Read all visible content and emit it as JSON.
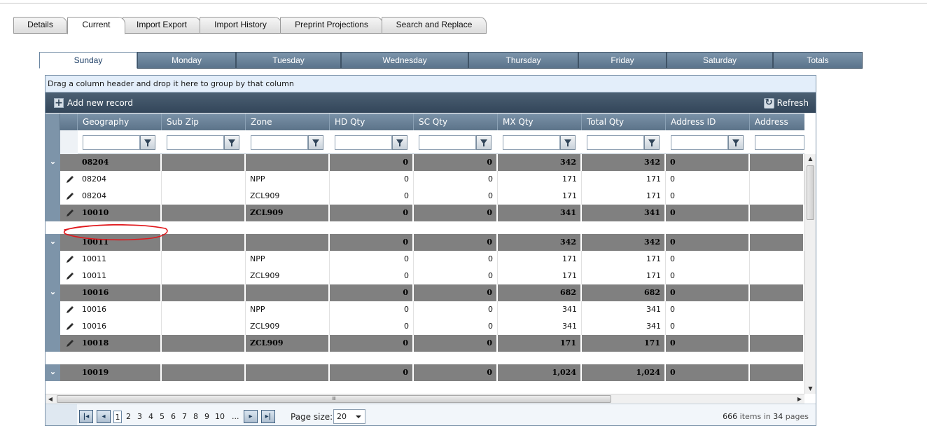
{
  "top_tabs": [
    "Details",
    "Current",
    "Import Export",
    "Import History",
    "Preprint Projections",
    "Search and Replace"
  ],
  "day_tabs": [
    "Sunday",
    "Monday",
    "Tuesday",
    "Wednesday",
    "Thursday",
    "Friday",
    "Saturday",
    "Totals"
  ],
  "grid": {
    "group_panel_text": "Drag a column header and drop it here to group by that column",
    "add_label": "Add new record",
    "refresh_label": "Refresh",
    "columns": [
      "Geography",
      "Sub Zip",
      "Zone",
      "HD Qty",
      "SC Qty",
      "MX Qty",
      "Total Qty",
      "Address ID",
      "Address"
    ],
    "rows": [
      {
        "type": "group",
        "expand": "⌄",
        "geo": "08204",
        "subzip": "",
        "zone": "",
        "hd": "0",
        "sc": "0",
        "mx": "342",
        "total": "342",
        "addr": "0"
      },
      {
        "type": "data",
        "geo": "08204",
        "subzip": "",
        "zone": "NPP",
        "hd": "0",
        "sc": "0",
        "mx": "171",
        "total": "171",
        "addr": "0"
      },
      {
        "type": "data",
        "geo": "08204",
        "subzip": "",
        "zone": "ZCL909",
        "hd": "0",
        "sc": "0",
        "mx": "171",
        "total": "171",
        "addr": "0"
      },
      {
        "type": "group-edit",
        "geo": "10010",
        "subzip": "",
        "zone": "ZCL909",
        "hd": "0",
        "sc": "0",
        "mx": "341",
        "total": "341",
        "addr": "0"
      },
      {
        "type": "group",
        "expand": "⌄",
        "geo": "10011",
        "subzip": "",
        "zone": "",
        "hd": "0",
        "sc": "0",
        "mx": "342",
        "total": "342",
        "addr": "0"
      },
      {
        "type": "data",
        "geo": "10011",
        "subzip": "",
        "zone": "NPP",
        "hd": "0",
        "sc": "0",
        "mx": "171",
        "total": "171",
        "addr": "0"
      },
      {
        "type": "data",
        "geo": "10011",
        "subzip": "",
        "zone": "ZCL909",
        "hd": "0",
        "sc": "0",
        "mx": "171",
        "total": "171",
        "addr": "0"
      },
      {
        "type": "group",
        "expand": "⌄",
        "geo": "10016",
        "subzip": "",
        "zone": "",
        "hd": "0",
        "sc": "0",
        "mx": "682",
        "total": "682",
        "addr": "0"
      },
      {
        "type": "data",
        "geo": "10016",
        "subzip": "",
        "zone": "NPP",
        "hd": "0",
        "sc": "0",
        "mx": "341",
        "total": "341",
        "addr": "0"
      },
      {
        "type": "data",
        "geo": "10016",
        "subzip": "",
        "zone": "ZCL909",
        "hd": "0",
        "sc": "0",
        "mx": "341",
        "total": "341",
        "addr": "0"
      },
      {
        "type": "group-edit",
        "geo": "10018",
        "subzip": "",
        "zone": "ZCL909",
        "hd": "0",
        "sc": "0",
        "mx": "171",
        "total": "171",
        "addr": "0"
      },
      {
        "type": "group",
        "expand": "⌄",
        "geo": "10019",
        "subzip": "",
        "zone": "",
        "hd": "0",
        "sc": "0",
        "mx": "1,024",
        "total": "1,024",
        "addr": "0"
      }
    ]
  },
  "pager": {
    "pages": [
      "1",
      "2",
      "3",
      "4",
      "5",
      "6",
      "7",
      "8",
      "9",
      "10",
      "..."
    ],
    "current_page": "1",
    "page_size_label": "Page size:",
    "page_size": "20",
    "items_count": "666",
    "items_text": "items in",
    "pages_count": "34",
    "pages_text": "pages"
  },
  "icons": {
    "first": "first-page-icon",
    "prev": "prev-page-icon",
    "next": "next-page-icon",
    "last": "last-page-icon",
    "filter": "filter-icon",
    "edit": "pencil-icon",
    "add": "plus-icon",
    "refresh": "refresh-icon",
    "scroll_grip": "Ⅲ"
  },
  "colors": {
    "header": "#5c7389",
    "group_row": "#808080",
    "annotation": "#e0181c"
  }
}
